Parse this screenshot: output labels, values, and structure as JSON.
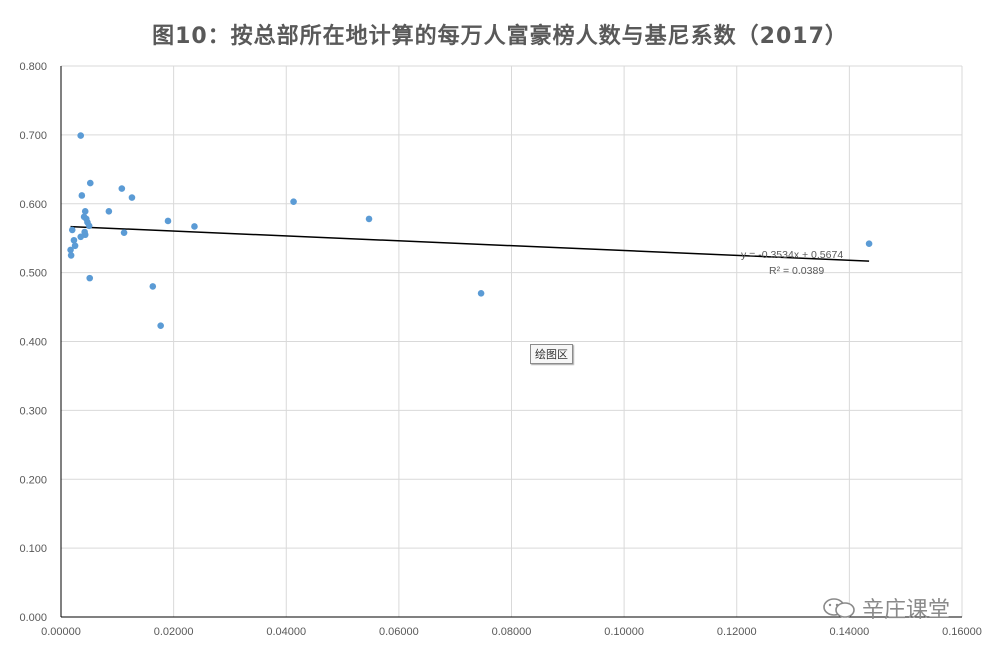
{
  "title": "图10：按总部所在地计算的每万人富豪榜人数与基尼系数（2017）",
  "tooltip": "绘图区",
  "watermark": "辛庄课堂",
  "chart_data": {
    "type": "scatter",
    "xlim": [
      0,
      0.16
    ],
    "ylim": [
      0,
      0.8
    ],
    "x_ticks": [
      0,
      0.02,
      0.04,
      0.06,
      0.08,
      0.1,
      0.12,
      0.14,
      0.16
    ],
    "y_ticks": [
      0,
      0.1,
      0.2,
      0.3,
      0.4,
      0.5,
      0.6,
      0.7,
      0.8
    ],
    "x_tick_labels": [
      "0.00000",
      "0.02000",
      "0.04000",
      "0.06000",
      "0.08000",
      "0.10000",
      "0.12000",
      "0.14000",
      "0.16000"
    ],
    "y_tick_labels": [
      "0.000",
      "0.100",
      "0.200",
      "0.300",
      "0.400",
      "0.500",
      "0.600",
      "0.700",
      "0.800"
    ],
    "grid": true,
    "marker_color": "#5b9bd5",
    "trend_color": "#000000",
    "points": [
      {
        "x": 0.0035,
        "y": 0.699
      },
      {
        "x": 0.0052,
        "y": 0.63
      },
      {
        "x": 0.0108,
        "y": 0.622
      },
      {
        "x": 0.0037,
        "y": 0.612
      },
      {
        "x": 0.0126,
        "y": 0.609
      },
      {
        "x": 0.0413,
        "y": 0.603
      },
      {
        "x": 0.0085,
        "y": 0.589
      },
      {
        "x": 0.0043,
        "y": 0.589
      },
      {
        "x": 0.0041,
        "y": 0.581
      },
      {
        "x": 0.0045,
        "y": 0.578
      },
      {
        "x": 0.0547,
        "y": 0.578
      },
      {
        "x": 0.0047,
        "y": 0.573
      },
      {
        "x": 0.019,
        "y": 0.575
      },
      {
        "x": 0.005,
        "y": 0.568
      },
      {
        "x": 0.0237,
        "y": 0.567
      },
      {
        "x": 0.002,
        "y": 0.562
      },
      {
        "x": 0.0042,
        "y": 0.559
      },
      {
        "x": 0.0112,
        "y": 0.558
      },
      {
        "x": 0.0043,
        "y": 0.555
      },
      {
        "x": 0.0035,
        "y": 0.552
      },
      {
        "x": 0.0023,
        "y": 0.547
      },
      {
        "x": 0.0025,
        "y": 0.539
      },
      {
        "x": 0.0017,
        "y": 0.533
      },
      {
        "x": 0.0018,
        "y": 0.525
      },
      {
        "x": 0.1435,
        "y": 0.542
      },
      {
        "x": 0.0051,
        "y": 0.492
      },
      {
        "x": 0.0163,
        "y": 0.48
      },
      {
        "x": 0.0746,
        "y": 0.47
      },
      {
        "x": 0.0177,
        "y": 0.423
      }
    ],
    "trendline": {
      "slope": -0.3534,
      "intercept": 0.5674,
      "x_range": [
        0.0017,
        0.1435
      ],
      "equation": "y = -0.3534x + 0.5674",
      "r2": "R² = 0.0389"
    }
  }
}
